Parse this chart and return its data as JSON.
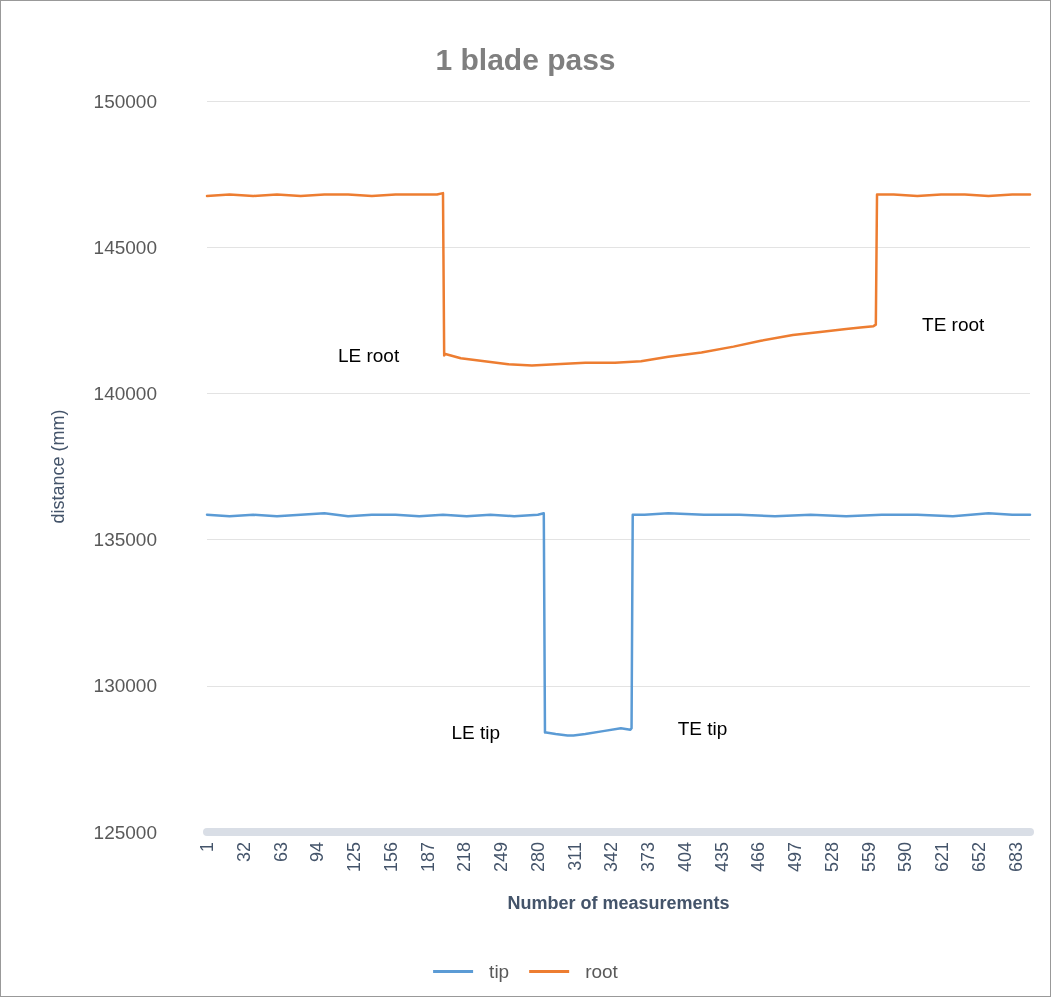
{
  "chart_data": {
    "type": "line",
    "title": "1 blade pass",
    "xlabel": "Number of measurements",
    "ylabel": "distance (mm)",
    "xlim": [
      1,
      695
    ],
    "xticks": [
      1,
      32,
      63,
      94,
      125,
      156,
      187,
      218,
      249,
      280,
      311,
      342,
      373,
      404,
      435,
      466,
      497,
      528,
      559,
      590,
      621,
      652,
      683
    ],
    "ylim": [
      125000,
      150000
    ],
    "yticks": [
      125000,
      130000,
      135000,
      140000,
      145000,
      150000
    ],
    "grid": "y",
    "legend": "bottom",
    "marker": "none",
    "line_style": "solid",
    "series": [
      {
        "name": "tip",
        "color": "#5b9bd5",
        "x": [
          1,
          20,
          40,
          60,
          80,
          100,
          120,
          140,
          160,
          180,
          200,
          220,
          240,
          260,
          280,
          285,
          286,
          287,
          295,
          305,
          310,
          320,
          335,
          350,
          358,
          359,
          360,
          361,
          370,
          390,
          420,
          450,
          480,
          510,
          540,
          570,
          600,
          630,
          660,
          680,
          695
        ],
        "values": [
          135850,
          135800,
          135850,
          135800,
          135850,
          135900,
          135800,
          135850,
          135850,
          135800,
          135850,
          135800,
          135850,
          135800,
          135850,
          135900,
          128400,
          128400,
          128350,
          128300,
          128300,
          128350,
          128450,
          128550,
          128500,
          128550,
          135850,
          135850,
          135850,
          135900,
          135850,
          135850,
          135800,
          135850,
          135800,
          135850,
          135850,
          135800,
          135900,
          135850,
          135850
        ]
      },
      {
        "name": "root",
        "color": "#ed7d31",
        "x": [
          1,
          20,
          40,
          60,
          80,
          100,
          120,
          140,
          160,
          180,
          195,
          200,
          201,
          202,
          215,
          235,
          255,
          275,
          295,
          320,
          345,
          367,
          390,
          418,
          445,
          468,
          495,
          518,
          540,
          552,
          563,
          565,
          566,
          567,
          580,
          600,
          620,
          640,
          660,
          680,
          695
        ],
        "values": [
          146750,
          146800,
          146750,
          146800,
          146750,
          146800,
          146800,
          146750,
          146800,
          146800,
          146800,
          146850,
          141300,
          141350,
          141200,
          141100,
          141000,
          140950,
          141000,
          141050,
          141050,
          141100,
          141250,
          141400,
          141600,
          141800,
          142000,
          142100,
          142200,
          142250,
          142300,
          142350,
          146800,
          146800,
          146800,
          146750,
          146800,
          146800,
          146750,
          146800,
          146800
        ]
      }
    ],
    "annotations": [
      {
        "text": "LE root",
        "x": 201,
        "y": 141300
      },
      {
        "text": "TE root",
        "x": 566,
        "y": 142350
      },
      {
        "text": "LE tip",
        "x": 286,
        "y": 128400
      },
      {
        "text": "TE tip",
        "x": 360,
        "y": 128550
      }
    ]
  }
}
